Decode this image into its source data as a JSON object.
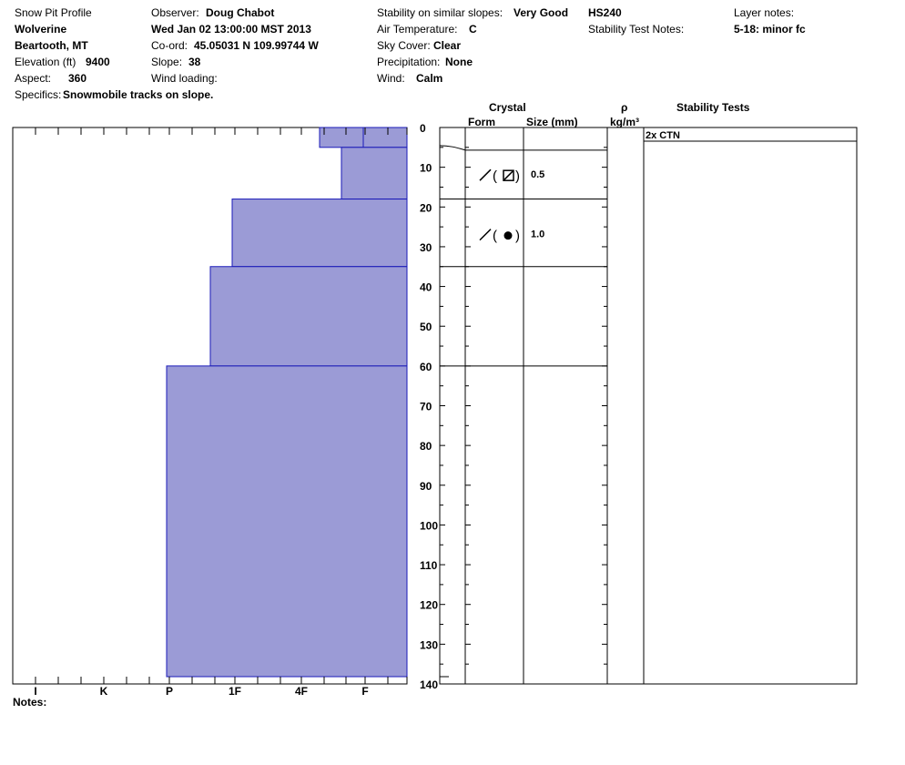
{
  "header": {
    "title": "Snow Pit Profile",
    "location": "Wolverine",
    "region": "Beartooth, MT",
    "elevation_label": "Elevation (ft)",
    "elevation_value": "9400",
    "aspect_label": "Aspect:",
    "aspect_value": "360",
    "specifics_label": "Specifics:",
    "specifics_value": "Snowmobile tracks on slope.",
    "observer_label": "Observer:",
    "observer_value": "Doug Chabot",
    "datetime": "Wed Jan 02 13:00:00 MST 2013",
    "coord_label": "Co-ord:",
    "coord_value": "45.05031 N 109.99744 W",
    "slope_label": "Slope:",
    "slope_value": "38",
    "wind_loading_label": "Wind loading:",
    "wind_loading_value": "",
    "stability_label": "Stability on similar slopes:",
    "stability_value": "Very Good",
    "hs_value": "HS240",
    "air_temp_label": "Air Temperature:",
    "air_temp_value": "C",
    "sky_label": "Sky Cover:",
    "sky_value": "Clear",
    "precip_label": "Precipitation:",
    "precip_value": "None",
    "wind_label": "Wind:",
    "wind_value": "Calm",
    "layer_notes_label": "Layer notes:",
    "layer_notes_value": "5-18: minor fc",
    "stability_test_notes_label": "Stability Test Notes:",
    "notes_label": "Notes:"
  },
  "columns": {
    "crystal": "Crystal",
    "form": "Form",
    "size": "Size (mm)",
    "rho": "ρ",
    "rho_unit": "kg/m³",
    "stability_tests": "Stability Tests"
  },
  "chart_data": {
    "type": "snow-profile",
    "depth_ticks": [
      0,
      10,
      20,
      30,
      40,
      50,
      60,
      70,
      80,
      90,
      100,
      110,
      120,
      130,
      140
    ],
    "depth_range": [
      0,
      140
    ],
    "hardness_scale": [
      "I",
      "K",
      "P",
      "1F",
      "4F",
      "F"
    ],
    "hardness_layers": [
      {
        "top": 0,
        "bottom": 5,
        "hardness": "4F-"
      },
      {
        "top": 5,
        "bottom": 18,
        "hardness": "4F+"
      },
      {
        "top": 18,
        "bottom": 35,
        "hardness": "1F"
      },
      {
        "top": 35,
        "bottom": 60,
        "hardness": "1F+"
      },
      {
        "top": 60,
        "bottom": 140,
        "hardness": "P"
      }
    ],
    "layer_boundaries": [
      5,
      18,
      35,
      60
    ],
    "crystals": [
      {
        "top": 5,
        "bottom": 18,
        "form": "faceted rounded",
        "size": "0.5"
      },
      {
        "top": 18,
        "bottom": 35,
        "form": "rounded",
        "size": "1.0"
      }
    ],
    "stability_tests": [
      {
        "depth": 0,
        "result": "2x CTN"
      }
    ]
  },
  "colors": {
    "fill": "#9b9bd6",
    "edge": "#1a1ab8"
  }
}
